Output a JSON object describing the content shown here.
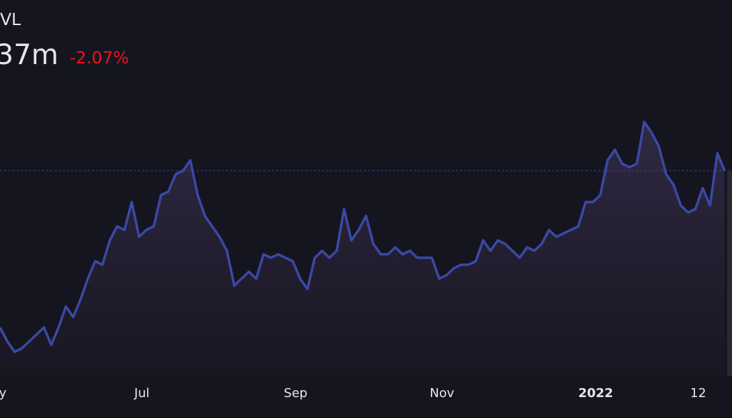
{
  "chart_data": {
    "type": "area",
    "title": "VL",
    "current_value": "37m",
    "change": "-2.07%",
    "color": "#3a49a6",
    "ylim": [
      0,
      120
    ],
    "reference_line": true,
    "categories": [
      "y",
      null,
      null,
      null,
      null,
      null,
      null,
      null,
      null,
      null,
      null,
      null,
      null,
      null,
      null,
      null,
      null,
      null,
      null,
      "Jul",
      null,
      null,
      null,
      null,
      null,
      null,
      null,
      null,
      null,
      null,
      null,
      null,
      null,
      null,
      null,
      null,
      null,
      null,
      null,
      null,
      "Sep",
      null,
      null,
      null,
      null,
      null,
      null,
      null,
      null,
      null,
      null,
      null,
      null,
      null,
      null,
      null,
      null,
      null,
      null,
      null,
      "Nov",
      null,
      null,
      null,
      null,
      null,
      null,
      null,
      null,
      null,
      null,
      null,
      null,
      null,
      null,
      null,
      null,
      null,
      null,
      null,
      null,
      "2022",
      null,
      null,
      null,
      null,
      null,
      null,
      null,
      null,
      null,
      null,
      null,
      null,
      null,
      "12",
      null,
      null,
      null,
      null
    ],
    "values": [
      26,
      22,
      19,
      20,
      22,
      24,
      26,
      21,
      26,
      32,
      29,
      34,
      40,
      45,
      44,
      51,
      55,
      54,
      62,
      52,
      54,
      55,
      64,
      65,
      70,
      71,
      74,
      64,
      58,
      55,
      52,
      48,
      38,
      40,
      42,
      40,
      47,
      46,
      47,
      46,
      45,
      40,
      37,
      46,
      48,
      46,
      48,
      60,
      51,
      54,
      58,
      50,
      47,
      47,
      49,
      47,
      48,
      46,
      46,
      46,
      40,
      41,
      43,
      44,
      44,
      45,
      51,
      48,
      51,
      50,
      48,
      46,
      49,
      48,
      50,
      54,
      52,
      53,
      54,
      55,
      62,
      62,
      64,
      74,
      77,
      73,
      72,
      73,
      85,
      82,
      78,
      70,
      67,
      61,
      59,
      60,
      66,
      61,
      76,
      71
    ]
  }
}
